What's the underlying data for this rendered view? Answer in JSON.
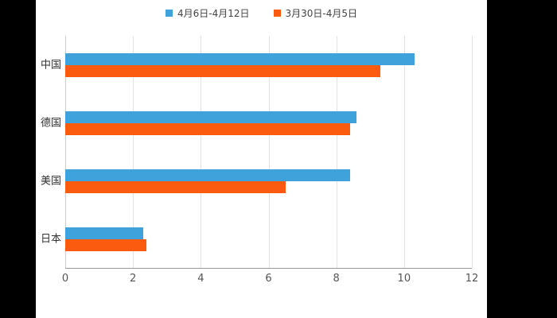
{
  "chart_data": {
    "type": "bar",
    "orientation": "horizontal",
    "title": "",
    "xlabel": "",
    "ylabel": "",
    "categories": [
      "中国",
      "德国",
      "美国",
      "日本"
    ],
    "series": [
      {
        "name": "4月6日-4月12日",
        "color": "#3FA2DA",
        "values": [
          10.3,
          8.6,
          8.4,
          2.3
        ]
      },
      {
        "name": "3月30日-4月5日",
        "color": "#FA5B0F",
        "values": [
          9.3,
          8.4,
          6.5,
          2.4
        ]
      }
    ],
    "xlim": [
      0,
      12
    ],
    "xticks": [
      0,
      2,
      4,
      6,
      8,
      10,
      12
    ],
    "grid": "vertical",
    "legend_position": "top-center",
    "background": "#ffffff",
    "page_background": "#000000"
  }
}
